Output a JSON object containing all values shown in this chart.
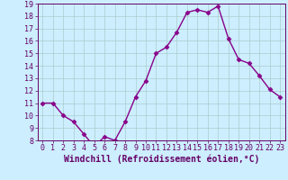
{
  "x": [
    0,
    1,
    2,
    3,
    4,
    5,
    6,
    7,
    8,
    9,
    10,
    11,
    12,
    13,
    14,
    15,
    16,
    17,
    18,
    19,
    20,
    21,
    22,
    23
  ],
  "y": [
    11,
    11,
    10,
    9.5,
    8.5,
    7.5,
    8.3,
    8.0,
    9.5,
    11.5,
    12.8,
    15.0,
    15.5,
    16.7,
    18.3,
    18.5,
    18.3,
    18.8,
    16.2,
    14.5,
    14.2,
    13.2,
    12.1,
    11.5
  ],
  "line_color": "#880088",
  "marker": "D",
  "markersize": 2.5,
  "linewidth": 1.0,
  "bg_color": "#cceeff",
  "grid_color": "#aacccc",
  "xlabel": "Windchill (Refroidissement éolien,°C)",
  "ylim": [
    8,
    19
  ],
  "xlim": [
    -0.5,
    23.5
  ],
  "yticks": [
    8,
    9,
    10,
    11,
    12,
    13,
    14,
    15,
    16,
    17,
    18,
    19
  ],
  "xticks": [
    0,
    1,
    2,
    3,
    4,
    5,
    6,
    7,
    8,
    9,
    10,
    11,
    12,
    13,
    14,
    15,
    16,
    17,
    18,
    19,
    20,
    21,
    22,
    23
  ],
  "tick_color": "#660066",
  "label_color": "#660066",
  "axis_color": "#660066",
  "xlabel_fontsize": 7,
  "tick_fontsize": 6
}
